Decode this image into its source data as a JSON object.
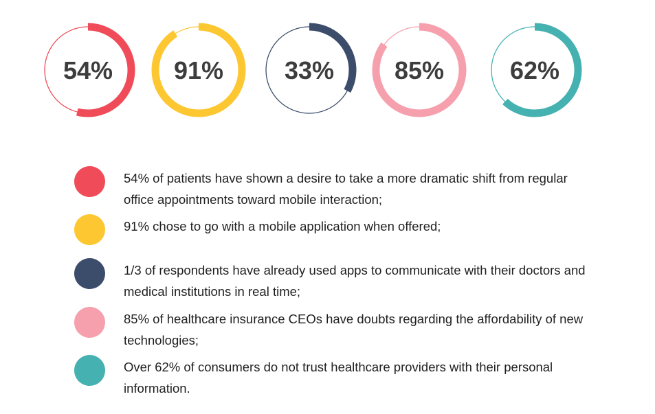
{
  "chart_data": {
    "type": "donut",
    "items": [
      {
        "value": 54,
        "label": "54%",
        "color": "#f04b58",
        "text": "54% of patients have shown a desire to take a more dramatic shift from regular office appointments toward mobile interaction;"
      },
      {
        "value": 91,
        "label": "91%",
        "color": "#fdc731",
        "text": "91% chose to go with a mobile application when offered;"
      },
      {
        "value": 33,
        "label": "33%",
        "color": "#3c4d6b",
        "text": "1/3 of respondents have already used apps to communicate with their doctors and medical institutions in real time;"
      },
      {
        "value": 85,
        "label": "85%",
        "color": "#f6a0ae",
        "text": "85% of healthcare insurance CEOs have doubts regarding the affordability of new technologies;"
      },
      {
        "value": 62,
        "label": "62%",
        "color": "#45b1b0",
        "text": "Over 62% of consumers do not trust healthcare providers with their personal information."
      }
    ]
  }
}
